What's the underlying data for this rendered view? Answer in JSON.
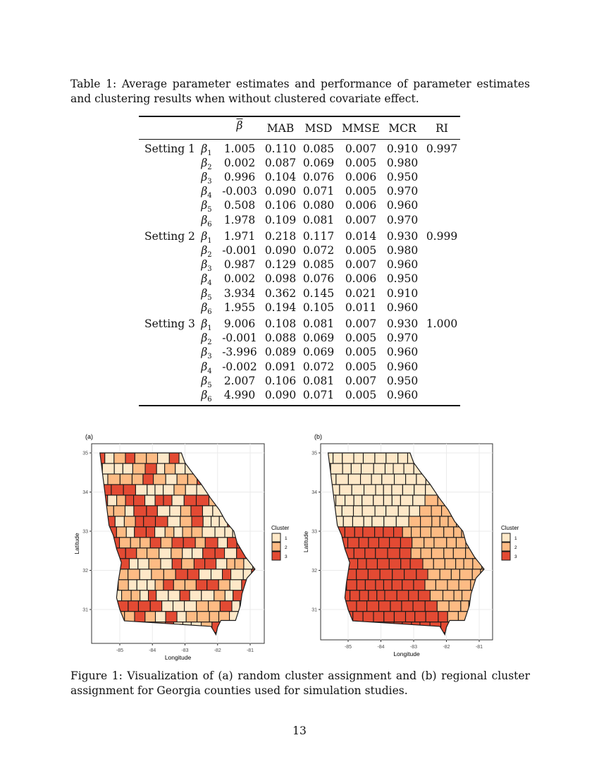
{
  "table_caption": "Table 1: Average parameter estimates and performance of parameter estimates and clustering results when without clustered covariate effect.",
  "table": {
    "headers": [
      "β",
      "MAB",
      "MSD",
      "MMSE",
      "MCR",
      "RI"
    ],
    "settings": [
      {
        "label": "Setting 1",
        "ri": "0.997",
        "rows": [
          [
            "1",
            "1.005",
            "0.110",
            "0.085",
            "0.007",
            "0.910"
          ],
          [
            "2",
            "0.002",
            "0.087",
            "0.069",
            "0.005",
            "0.980"
          ],
          [
            "3",
            "0.996",
            "0.104",
            "0.076",
            "0.006",
            "0.950"
          ],
          [
            "4",
            "-0.003",
            "0.090",
            "0.071",
            "0.005",
            "0.970"
          ],
          [
            "5",
            "0.508",
            "0.106",
            "0.080",
            "0.006",
            "0.960"
          ],
          [
            "6",
            "1.978",
            "0.109",
            "0.081",
            "0.007",
            "0.970"
          ]
        ]
      },
      {
        "label": "Setting 2",
        "ri": "0.999",
        "rows": [
          [
            "1",
            "1.971",
            "0.218",
            "0.117",
            "0.014",
            "0.930"
          ],
          [
            "2",
            "-0.001",
            "0.090",
            "0.072",
            "0.005",
            "0.980"
          ],
          [
            "3",
            "0.987",
            "0.129",
            "0.085",
            "0.007",
            "0.960"
          ],
          [
            "4",
            "0.002",
            "0.098",
            "0.076",
            "0.006",
            "0.950"
          ],
          [
            "5",
            "3.934",
            "0.362",
            "0.145",
            "0.021",
            "0.910"
          ],
          [
            "6",
            "1.955",
            "0.194",
            "0.105",
            "0.011",
            "0.960"
          ]
        ]
      },
      {
        "label": "Setting 3",
        "ri": "1.000",
        "rows": [
          [
            "1",
            "9.006",
            "0.108",
            "0.081",
            "0.007",
            "0.930"
          ],
          [
            "2",
            "-0.001",
            "0.088",
            "0.069",
            "0.005",
            "0.970"
          ],
          [
            "3",
            "-3.996",
            "0.089",
            "0.069",
            "0.005",
            "0.960"
          ],
          [
            "4",
            "-0.002",
            "0.091",
            "0.072",
            "0.005",
            "0.960"
          ],
          [
            "5",
            "2.007",
            "0.106",
            "0.081",
            "0.007",
            "0.950"
          ],
          [
            "6",
            "4.990",
            "0.090",
            "0.071",
            "0.005",
            "0.960"
          ]
        ]
      }
    ],
    "param_symbol": "β"
  },
  "figure": {
    "panels": [
      {
        "tag": "(a)",
        "assignment": "random"
      },
      {
        "tag": "(b)",
        "assignment": "regional"
      }
    ],
    "xlabel": "Longitude",
    "ylabel": "Latitude",
    "xticks": [
      "-85",
      "-84",
      "-83",
      "-82",
      "-81"
    ],
    "yticks": [
      "35",
      "34",
      "33",
      "32",
      "31"
    ],
    "legend": {
      "title": "Cluster",
      "items": [
        "1",
        "2",
        "3"
      ],
      "colors": [
        "#FEE8C8",
        "#FDBB84",
        "#E34A33"
      ]
    }
  },
  "figure_caption": "Figure 1: Visualization of (a) random cluster assignment and (b) regional cluster assignment for Georgia counties used for simulation studies.",
  "page_number": "13"
}
